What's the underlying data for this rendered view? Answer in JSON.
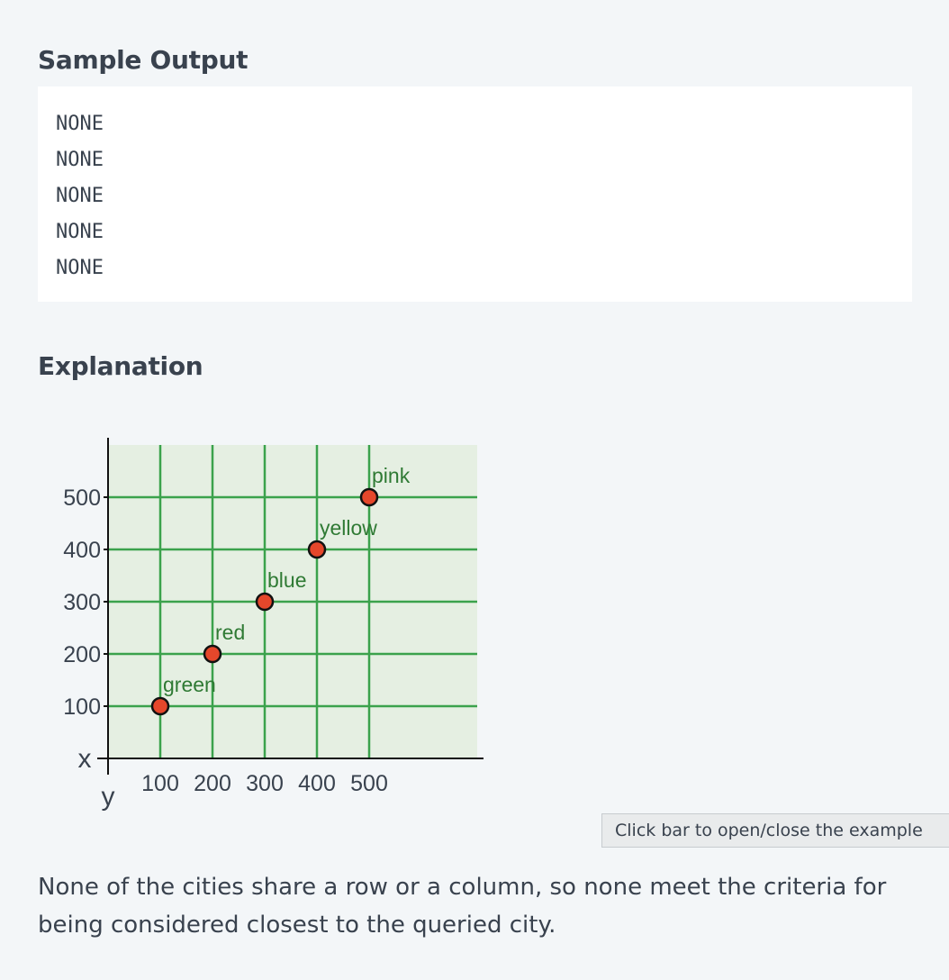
{
  "sample_output": {
    "title": "Sample Output",
    "lines": [
      "NONE",
      "NONE",
      "NONE",
      "NONE",
      "NONE"
    ]
  },
  "explanation": {
    "title": "Explanation",
    "toggle_label": "Click bar to open/close the example",
    "text": "None of the cities share a row or a column, so none meet the criteria for being considered closest to the queried city."
  },
  "colors": {
    "grid_background": "#e5efe2",
    "grid_line": "#3ba24c",
    "point_fill": "#e5472b",
    "label_text": "#2f7a34"
  },
  "chart_data": {
    "type": "scatter",
    "x_ticks": [
      100,
      200,
      300,
      400,
      500
    ],
    "y_ticks": [
      100,
      200,
      300,
      400,
      500
    ],
    "xlabel": "y",
    "ylabel": "x",
    "xlim": [
      0,
      600
    ],
    "ylim": [
      0,
      600
    ],
    "grid": true,
    "points": [
      {
        "label": "green",
        "x": 100,
        "y": 100
      },
      {
        "label": "red",
        "x": 200,
        "y": 200
      },
      {
        "label": "blue",
        "x": 300,
        "y": 300
      },
      {
        "label": "yellow",
        "x": 400,
        "y": 400
      },
      {
        "label": "pink",
        "x": 500,
        "y": 500
      }
    ]
  }
}
